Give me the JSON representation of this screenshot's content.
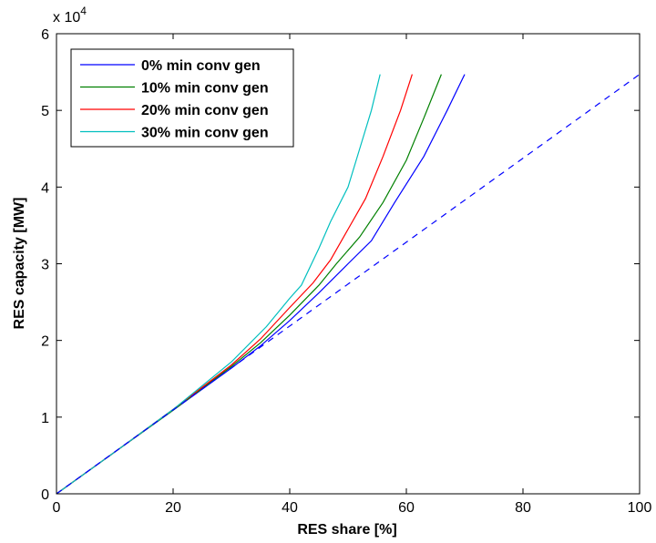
{
  "chart_data": {
    "type": "line",
    "title": "",
    "xlabel": "RES share [%]",
    "ylabel": "RES capacity [MW]",
    "y_exponent_label": "x 10",
    "y_exponent_power": "4",
    "xlim": [
      0,
      100
    ],
    "ylim": [
      0,
      6
    ],
    "x_ticks": [
      "0",
      "20",
      "40",
      "60",
      "80",
      "100"
    ],
    "y_ticks": [
      "0",
      "1",
      "2",
      "3",
      "4",
      "5",
      "6"
    ],
    "y_scale": 10000,
    "grid": false,
    "legend_position": "top-left",
    "series": [
      {
        "name": "0% min conv gen",
        "color": "#0000ff",
        "style": "solid",
        "in_legend": true,
        "x": [
          0,
          10,
          20,
          30,
          35,
          40,
          45,
          50,
          54,
          58,
          63,
          67,
          70
        ],
        "y": [
          0,
          0.545,
          1.09,
          1.64,
          1.93,
          2.26,
          2.62,
          3.0,
          3.3,
          3.8,
          4.4,
          5.0,
          5.47
        ]
      },
      {
        "name": "10% min conv gen",
        "color": "#008000",
        "style": "solid",
        "in_legend": true,
        "x": [
          0,
          10,
          20,
          30,
          35,
          40,
          45,
          48,
          52,
          56,
          60,
          63,
          66
        ],
        "y": [
          0,
          0.545,
          1.09,
          1.66,
          1.97,
          2.33,
          2.72,
          3.0,
          3.35,
          3.8,
          4.35,
          4.9,
          5.47
        ]
      },
      {
        "name": "20% min conv gen",
        "color": "#ff0000",
        "style": "solid",
        "in_legend": true,
        "x": [
          0,
          10,
          20,
          30,
          35,
          40,
          44,
          47,
          50,
          53,
          56,
          59,
          61
        ],
        "y": [
          0,
          0.545,
          1.1,
          1.68,
          2.02,
          2.43,
          2.75,
          3.05,
          3.45,
          3.85,
          4.4,
          5.0,
          5.47
        ]
      },
      {
        "name": "30% min conv gen",
        "color": "#00bfbf",
        "style": "solid",
        "in_legend": true,
        "x": [
          0,
          10,
          20,
          30,
          36,
          40,
          42,
          45,
          47,
          50,
          52,
          54,
          55.5
        ],
        "y": [
          0,
          0.545,
          1.1,
          1.72,
          2.18,
          2.55,
          2.72,
          3.2,
          3.55,
          4.0,
          4.5,
          5.0,
          5.47
        ]
      },
      {
        "name": "",
        "color": "#0000ff",
        "style": "dashed",
        "in_legend": false,
        "x": [
          0,
          100
        ],
        "y": [
          0,
          5.47
        ]
      }
    ]
  }
}
